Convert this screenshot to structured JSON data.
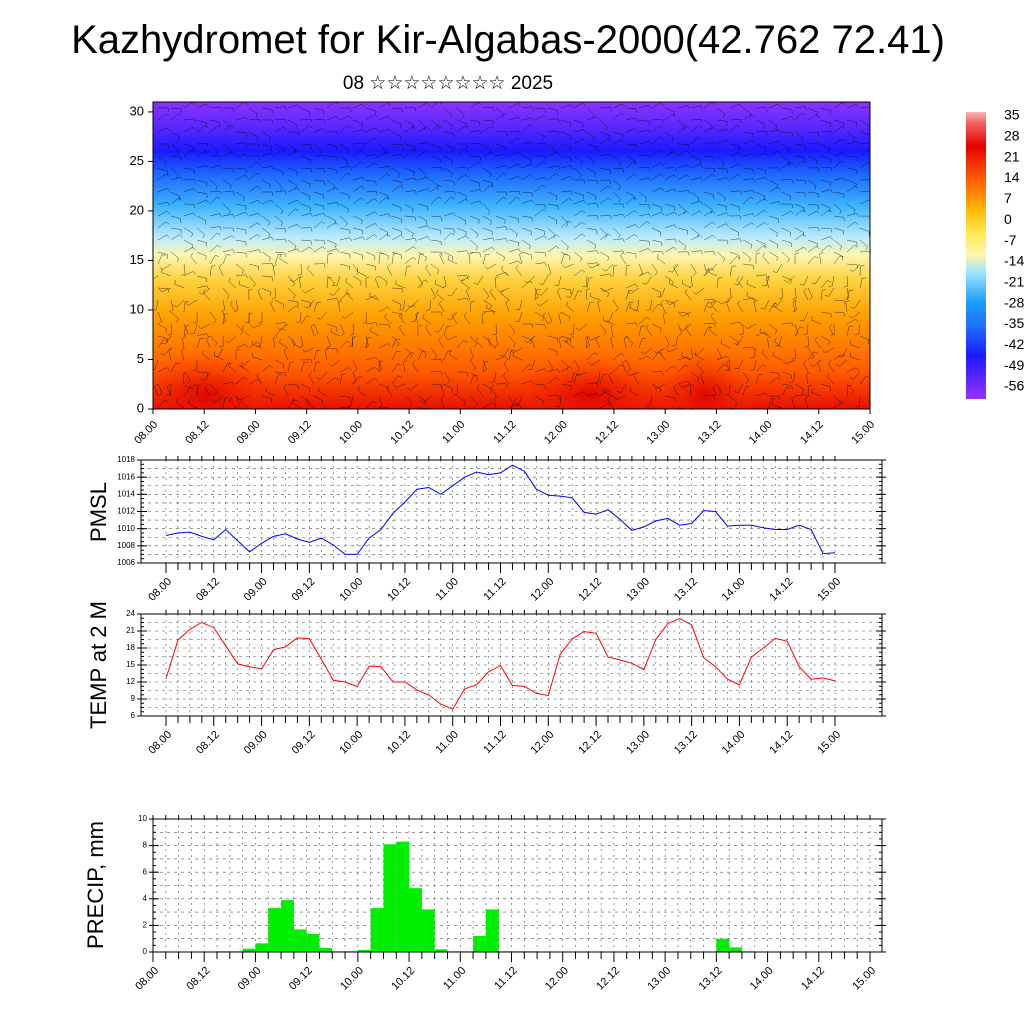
{
  "title": "Kazhydromet for Kir-Algabas-2000(42.762 72.41)",
  "subtitle": "08 ☆☆☆☆☆☆☆☆ 2025",
  "chart_data": [
    {
      "type": "heatmap",
      "name": "vertical-cross-section",
      "y_ticks": [
        "0",
        "5",
        "10",
        "15",
        "20",
        "25",
        "30"
      ],
      "ylim": [
        0,
        31
      ],
      "x_ticks": [
        "08.00",
        "08.12",
        "09.00",
        "09.12",
        "10.00",
        "10.12",
        "11.00",
        "11.12",
        "12.00",
        "12.12",
        "13.00",
        "13.12",
        "14.00",
        "14.12",
        "15.00"
      ],
      "colorbar_labels": [
        "35",
        "28",
        "21",
        "14",
        "7",
        "0",
        "-7",
        "-14",
        "-21",
        "-28",
        "-35",
        "-42",
        "-49",
        "-56"
      ],
      "colors": [
        "#ffb3b3",
        "#e80000",
        "#ff6a00",
        "#ffb800",
        "#ffe94d",
        "#f7f7c8",
        "#9fe3ff",
        "#1e90ff",
        "#0a2bff",
        "#7b2cff",
        "#9932ff"
      ],
      "overlay": "wind barbs"
    },
    {
      "type": "line",
      "name": "pmsl",
      "ylabel": "PMSL",
      "ylim": [
        1006,
        1018
      ],
      "y_ticks": [
        "1006",
        "1008",
        "1010",
        "1012",
        "1014",
        "1016",
        "1018"
      ],
      "x_ticks": [
        "08.00",
        "08.12",
        "09.00",
        "09.12",
        "10.00",
        "10.12",
        "11.00",
        "11.12",
        "12.00",
        "12.12",
        "13.00",
        "13.12",
        "14.00",
        "14.12",
        "15.00"
      ],
      "series": [
        {
          "color": "#0000ff",
          "x": [
            0,
            3,
            6,
            9,
            12,
            15,
            18,
            21,
            24,
            27,
            30,
            33,
            36,
            39,
            42,
            45,
            48,
            51,
            54,
            57,
            60,
            63,
            66,
            69,
            72,
            75,
            78,
            81,
            84,
            87,
            90,
            93,
            96,
            99,
            102,
            105,
            108,
            111,
            114,
            117,
            120,
            123,
            126,
            129,
            132,
            135,
            138,
            141,
            144,
            147,
            150,
            153,
            156,
            159,
            162,
            165,
            168
          ],
          "values": [
            1009.2,
            1009.5,
            1009.6,
            1009.1,
            1008.7,
            1009.9,
            1008.6,
            1007.3,
            1008.3,
            1009.1,
            1009.4,
            1008.8,
            1008.4,
            1008.9,
            1008.1,
            1007.0,
            1007.0,
            1008.9,
            1009.9,
            1011.8,
            1013.1,
            1014.6,
            1014.8,
            1014.0,
            1015.0,
            1016.0,
            1016.6,
            1016.3,
            1016.5,
            1017.4,
            1016.7,
            1014.6,
            1013.9,
            1013.8,
            1013.6,
            1011.9,
            1011.7,
            1012.2,
            1011.1,
            1009.8,
            1010.2,
            1010.9,
            1011.2,
            1010.4,
            1010.6,
            1012.1,
            1012.0,
            1010.3,
            1010.4,
            1010.4,
            1010.1,
            1009.9,
            1009.9,
            1010.4,
            1009.9,
            1007.1,
            1007.2
          ]
        }
      ]
    },
    {
      "type": "line",
      "name": "temp-2m",
      "ylabel": "TEMP at 2 M",
      "ylim": [
        6,
        24
      ],
      "y_ticks": [
        "6",
        "9",
        "12",
        "15",
        "18",
        "21",
        "24"
      ],
      "x_ticks": [
        "08.00",
        "08.12",
        "09.00",
        "09.12",
        "10.00",
        "10.12",
        "11.00",
        "11.12",
        "12.00",
        "12.12",
        "13.00",
        "13.12",
        "14.00",
        "14.12",
        "15.00"
      ],
      "series": [
        {
          "color": "#ff0000",
          "x": [
            0,
            3,
            6,
            9,
            12,
            15,
            18,
            21,
            24,
            27,
            30,
            33,
            36,
            39,
            42,
            45,
            48,
            51,
            54,
            57,
            60,
            63,
            66,
            69,
            72,
            75,
            78,
            81,
            84,
            87,
            90,
            93,
            96,
            99,
            102,
            105,
            108,
            111,
            114,
            117,
            120,
            123,
            126,
            129,
            132,
            135,
            138,
            141,
            144,
            147,
            150,
            153,
            156,
            159,
            162,
            165,
            168
          ],
          "values": [
            12.6,
            19.4,
            21.3,
            22.5,
            21.6,
            18.4,
            15.2,
            14.7,
            14.3,
            17.7,
            18.2,
            19.8,
            19.6,
            16.0,
            12.3,
            12.0,
            11.2,
            14.8,
            14.7,
            12.0,
            12.0,
            10.6,
            9.7,
            8.1,
            7.2,
            10.8,
            11.5,
            13.8,
            14.9,
            11.4,
            11.2,
            10.0,
            9.6,
            16.9,
            19.6,
            20.9,
            20.6,
            16.4,
            15.9,
            15.3,
            14.2,
            19.5,
            22.3,
            23.2,
            22.1,
            16.3,
            14.7,
            12.5,
            11.5,
            16.4,
            18.0,
            19.7,
            19.2,
            14.7,
            12.5,
            12.7,
            12.2
          ]
        }
      ]
    },
    {
      "type": "bar",
      "name": "precip",
      "ylabel": "PRECIP, mm",
      "ylim": [
        0,
        10
      ],
      "y_ticks": [
        "0",
        "2",
        "4",
        "6",
        "8",
        "10"
      ],
      "x_ticks": [
        "08.00",
        "08.12",
        "09.00",
        "09.12",
        "10.00",
        "10.12",
        "11.00",
        "11.12",
        "12.00",
        "12.12",
        "13.00",
        "13.12",
        "14.00",
        "14.12",
        "15.00"
      ],
      "series": [
        {
          "color": "#00ee00",
          "x": [
            18,
            21,
            24,
            27,
            30,
            33,
            36,
            39,
            42,
            45,
            48,
            51,
            54,
            57,
            60,
            63,
            66,
            69,
            72,
            75,
            78,
            81,
            84,
            87,
            90,
            135,
            138,
            141
          ],
          "values": [
            0.05,
            0.05,
            0.25,
            0.65,
            3.3,
            3.9,
            1.7,
            1.35,
            0.3,
            0.05,
            0.05,
            0.15,
            3.3,
            8.1,
            8.3,
            4.8,
            3.2,
            0.2,
            0.05,
            0.05,
            1.2,
            3.2,
            0.05,
            0.05,
            0.05,
            1.0,
            0.35,
            0.05
          ]
        }
      ]
    }
  ]
}
